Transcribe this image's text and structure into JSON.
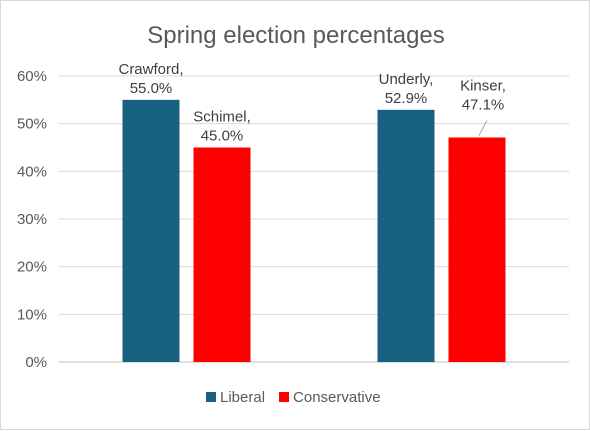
{
  "chart_data": {
    "type": "bar",
    "title": "Spring election percentages",
    "categories": [
      "",
      ""
    ],
    "series": [
      {
        "name": "Liberal",
        "color": "#17607f",
        "values": [
          55.0,
          52.9
        ],
        "labels": [
          [
            "Crawford,",
            "55.0%"
          ],
          [
            "Underly,",
            "52.9%"
          ]
        ]
      },
      {
        "name": "Conservative",
        "color": "#ff0000",
        "values": [
          45.0,
          47.1
        ],
        "labels": [
          [
            "Schimel,",
            "45.0%"
          ],
          [
            "Kinser,",
            "47.1%"
          ]
        ]
      }
    ],
    "ylim": [
      0,
      60
    ],
    "yticks": [
      "0%",
      "10%",
      "20%",
      "30%",
      "40%",
      "50%",
      "60%"
    ],
    "ytick_values": [
      0,
      10,
      20,
      30,
      40,
      50,
      60
    ],
    "grid": true,
    "legend": "bottom"
  }
}
